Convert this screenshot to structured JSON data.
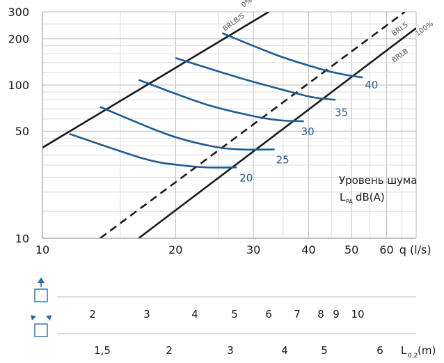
{
  "colors": {
    "curve": "#1f5c95",
    "axis": "#1a1a1a",
    "grid": "#d3d3d3",
    "icon": "#2a6aa8"
  },
  "chart_data": {
    "type": "line",
    "xscale": "log",
    "yscale": "log",
    "xlim": [
      10,
      70
    ],
    "ylim": [
      10,
      300
    ],
    "x_ticks": [
      10,
      20,
      30,
      40,
      50,
      60
    ],
    "y_ticks": [
      10,
      50,
      100,
      200,
      300
    ],
    "x_unit_label": "q (l/s)",
    "grid": true,
    "reference_lines": [
      {
        "name": "BRLB/S",
        "label2": "0%",
        "style": "solid",
        "points": [
          [
            10,
            39
          ],
          [
            32.5,
            300
          ]
        ]
      },
      {
        "name": "BRLS",
        "style": "dashed",
        "points": [
          [
            13.5,
            10
          ],
          [
            66,
            300
          ]
        ]
      },
      {
        "name": "BRLB",
        "label2": "100%",
        "style": "solid",
        "points": [
          [
            16.5,
            10
          ],
          [
            70,
            235
          ]
        ]
      }
    ],
    "series": [
      {
        "name": "20",
        "points": [
          [
            11.5,
            48
          ],
          [
            17,
            33
          ],
          [
            20.5,
            30
          ],
          [
            23.5,
            29
          ],
          [
            27.5,
            29
          ]
        ]
      },
      {
        "name": "25",
        "points": [
          [
            13.5,
            72
          ],
          [
            19,
            48
          ],
          [
            24,
            40
          ],
          [
            28,
            38
          ],
          [
            33.5,
            38
          ]
        ]
      },
      {
        "name": "30",
        "points": [
          [
            16.5,
            108
          ],
          [
            23,
            76
          ],
          [
            29,
            64
          ],
          [
            34,
            59
          ],
          [
            39,
            58
          ]
        ]
      },
      {
        "name": "35",
        "points": [
          [
            20,
            150
          ],
          [
            28,
            111
          ],
          [
            36,
            91
          ],
          [
            41,
            83
          ],
          [
            46,
            80
          ]
        ]
      },
      {
        "name": "40",
        "points": [
          [
            25.5,
            218
          ],
          [
            34,
            156
          ],
          [
            43,
            126
          ],
          [
            48,
            117
          ],
          [
            53,
            112
          ]
        ]
      }
    ],
    "curve_labels": [
      "20",
      "25",
      "30",
      "35",
      "40"
    ],
    "legend_text": "Уровень шума",
    "legend_sub_main": "L",
    "legend_sub_index": "PA",
    "legend_sub_unit": "dB(A)",
    "line_labels": {
      "brlbs": "BRLB/S",
      "zero": "0%",
      "brls": "BRLS",
      "brlb": "BRLB",
      "hundred": "100%"
    }
  },
  "throw_scale": {
    "row1": [
      "2",
      "3",
      "4",
      "5",
      "6",
      "7",
      "8",
      "9",
      "10"
    ],
    "row2": [
      "1,5",
      "2",
      "3",
      "4",
      "5",
      "6"
    ],
    "row2_unit_main": "L",
    "row2_unit_index": "0,2",
    "row2_unit_suffix": "(m)",
    "icons": [
      "single-direction-outlet-icon",
      "four-direction-outlet-icon"
    ]
  }
}
